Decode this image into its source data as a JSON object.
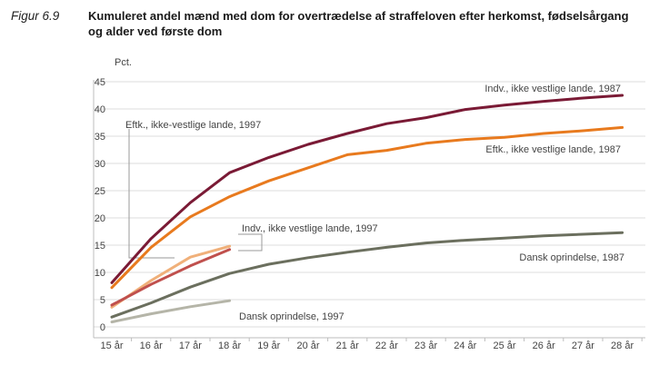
{
  "figure_label": "Figur 6.9",
  "title": "Kumuleret andel mænd med dom for overtrædelse af straffeloven efter herkomst, fødselsårgang og alder ved første dom",
  "chart_data": {
    "type": "line",
    "ylabel": "Pct.",
    "xlabel": "",
    "ylim": [
      0,
      45
    ],
    "yticks": [
      0,
      5,
      10,
      15,
      20,
      25,
      30,
      35,
      40,
      45
    ],
    "categories": [
      "15 år",
      "16 år",
      "17 år",
      "18 år",
      "19 år",
      "20 år",
      "21 år",
      "22 år",
      "23 år",
      "24 år",
      "25 år",
      "26 år",
      "27 år",
      "28 år"
    ],
    "series": [
      {
        "name": "Indv., ikke vestlige lande, 1987",
        "color": "#7a1a35",
        "values": [
          8.1,
          16.2,
          22.8,
          28.3,
          31.1,
          33.5,
          35.5,
          37.3,
          38.4,
          39.9,
          40.7,
          41.4,
          42.0,
          42.5
        ]
      },
      {
        "name": "Eftk., ikke vestlige lande, 1987",
        "color": "#e87a1e",
        "values": [
          7.2,
          14.6,
          20.2,
          23.9,
          26.8,
          29.2,
          31.6,
          32.4,
          33.7,
          34.4,
          34.8,
          35.5,
          36.0,
          36.6
        ]
      },
      {
        "name": "Dansk oprindelse, 1987",
        "color": "#6b6f5e",
        "values": [
          1.8,
          4.4,
          7.3,
          9.8,
          11.5,
          12.7,
          13.7,
          14.6,
          15.4,
          15.9,
          16.3,
          16.7,
          17.0,
          17.3
        ]
      },
      {
        "name": "Eftk., ikke-vestlige lande, 1997",
        "color": "#f0b07a",
        "values": [
          3.6,
          8.5,
          12.8,
          14.8,
          null,
          null,
          null,
          null,
          null,
          null,
          null,
          null,
          null,
          null
        ]
      },
      {
        "name": "Indv., ikke vestlige lande, 1997",
        "color": "#c0504d",
        "values": [
          4.0,
          7.8,
          11.2,
          14.2,
          null,
          null,
          null,
          null,
          null,
          null,
          null,
          null,
          null,
          null
        ]
      },
      {
        "name": "Dansk oprindelse, 1997",
        "color": "#b5b5a8",
        "values": [
          0.9,
          2.4,
          3.7,
          4.8,
          null,
          null,
          null,
          null,
          null,
          null,
          null,
          null,
          null,
          null
        ]
      }
    ],
    "annotations": [
      "Indv., ikke vestlige lande, 1987",
      "Eftk., ikke vestlige lande, 1987",
      "Eftk., ikke-vestlige lande, 1997",
      "Indv., ikke vestlige lande, 1997",
      "Dansk oprindelse, 1987",
      "Dansk oprindelse, 1997"
    ]
  }
}
